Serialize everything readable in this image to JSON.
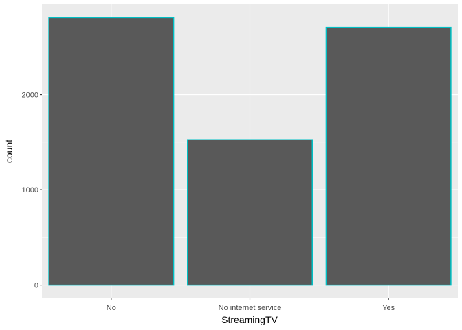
{
  "chart_data": {
    "type": "bar",
    "title": "",
    "xlabel": "StreamingTV",
    "ylabel": "count",
    "categories": [
      "No",
      "No internet service",
      "Yes"
    ],
    "values": [
      2810,
      1526,
      2707
    ],
    "ylim": [
      -140,
      2950
    ],
    "yticks": [
      0,
      1000,
      2000
    ],
    "ytick_labels": [
      "0",
      "1000",
      "2000"
    ],
    "minor_yticks": [
      500,
      1500,
      2500
    ],
    "grid": true,
    "legend": "none",
    "colors": {
      "panel_background": "#ebebeb",
      "grid_major": "#ffffff",
      "bar_fill": "#595959",
      "bar_outline": "#00bfc4"
    }
  }
}
